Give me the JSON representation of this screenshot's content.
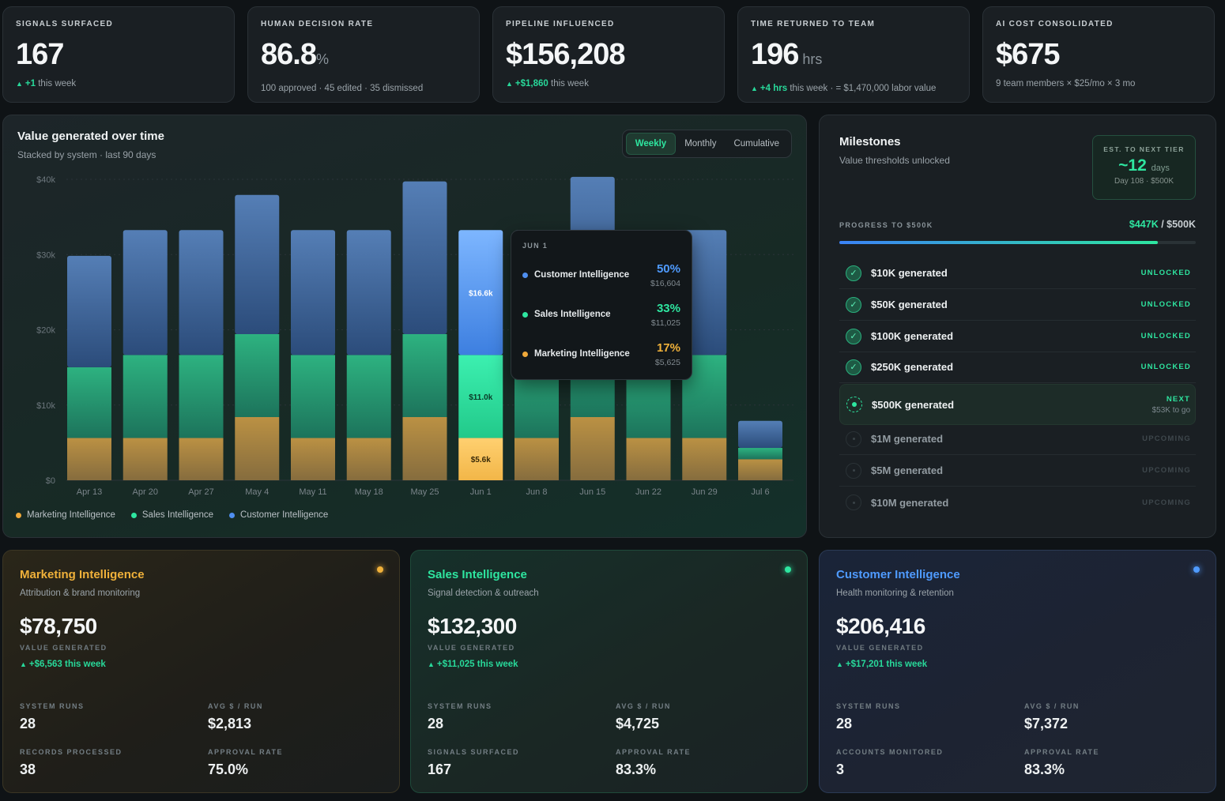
{
  "kpis": [
    {
      "label": "SIGNALS SURFACED",
      "value": "167",
      "unit": "",
      "sub_up": "+1",
      "sub_text": " this week"
    },
    {
      "label": "HUMAN DECISION RATE",
      "value": "86.8",
      "unit": "%",
      "sub_up": "",
      "sub_text": "100 approved · 45 edited · 35 dismissed"
    },
    {
      "label": "PIPELINE INFLUENCED",
      "value": "$156,208",
      "unit": "",
      "sub_up": "+$1,860",
      "sub_text": " this week"
    },
    {
      "label": "TIME RETURNED TO TEAM",
      "value": "196",
      "unit": " hrs",
      "sub_up": "+4 hrs",
      "sub_text": " this week · = $1,470,000 labor value"
    },
    {
      "label": "AI COST CONSOLIDATED",
      "value": "$675",
      "unit": "",
      "sub_up": "",
      "sub_text": "9 team members × $25/mo × 3 mo"
    }
  ],
  "chart_panel": {
    "title": "Value generated over time",
    "subtitle": "Stacked by system · last 90 days",
    "toggle": [
      "Weekly",
      "Monthly",
      "Cumulative"
    ],
    "active_toggle": "Weekly"
  },
  "chart_data": {
    "type": "bar",
    "stacked": true,
    "categories": [
      "Apr 13",
      "Apr 20",
      "Apr 27",
      "May 4",
      "May 11",
      "May 18",
      "May 25",
      "Jun 1",
      "Jun 8",
      "Jun 15",
      "Jun 22",
      "Jun 29",
      "Jul 6"
    ],
    "series": [
      {
        "name": "Marketing Intelligence",
        "color": "#d9a94a",
        "values": [
          5625,
          5625,
          5625,
          8400,
          5625,
          5625,
          8400,
          5625,
          5625,
          8400,
          5625,
          5625,
          2800
        ]
      },
      {
        "name": "Sales Intelligence",
        "color": "#2fc98f",
        "values": [
          9400,
          11025,
          11025,
          11025,
          11025,
          11025,
          11025,
          11025,
          11025,
          11025,
          11025,
          11025,
          1500
        ]
      },
      {
        "name": "Customer Intelligence",
        "color": "#4a7fc9",
        "values": [
          14800,
          16604,
          16604,
          18500,
          16604,
          16604,
          20300,
          16604,
          16604,
          20900,
          16604,
          16604,
          3600
        ]
      }
    ],
    "highlight_index": 7,
    "highlight_labels": [
      "$5.6k",
      "$11.0k",
      "$16.6k"
    ],
    "yticks": [
      "$0",
      "$10k",
      "$20k",
      "$30k",
      "$40k"
    ],
    "ylim": [
      0,
      40000
    ],
    "xlabel": "",
    "ylabel": "",
    "legend": "bottom-left"
  },
  "legend": [
    {
      "name": "Marketing Intelligence",
      "color": "#f0a93a"
    },
    {
      "name": "Sales Intelligence",
      "color": "#2ee6a0"
    },
    {
      "name": "Customer Intelligence",
      "color": "#4f8ff0"
    }
  ],
  "tooltip": {
    "header": "JUN 1",
    "rows": [
      {
        "name": "Customer Intelligence",
        "pct": "50%",
        "amount": "$16,604",
        "color": "#4f8ff0"
      },
      {
        "name": "Sales Intelligence",
        "pct": "33%",
        "amount": "$11,025",
        "color": "#2ee6a0"
      },
      {
        "name": "Marketing Intelligence",
        "pct": "17%",
        "amount": "$5,625",
        "color": "#f0a93a"
      }
    ]
  },
  "milestones": {
    "title": "Milestones",
    "subtitle": "Value thresholds unlocked",
    "tier_label": "EST. TO NEXT TIER",
    "tier_value": "~12",
    "tier_unit": "days",
    "tier_sub": "Day 108 · $500K",
    "progress_label": "PROGRESS TO $500K",
    "progress_current": "$447K",
    "progress_target": " / $500K",
    "progress_fraction": 0.894,
    "items": [
      {
        "name": "$10K generated",
        "status": "UNLOCKED",
        "state": "done"
      },
      {
        "name": "$50K generated",
        "status": "UNLOCKED",
        "state": "done"
      },
      {
        "name": "$100K generated",
        "status": "UNLOCKED",
        "state": "done"
      },
      {
        "name": "$250K generated",
        "status": "UNLOCKED",
        "state": "done"
      },
      {
        "name": "$500K generated",
        "status": "NEXT",
        "sub": "$53K to go",
        "state": "next"
      },
      {
        "name": "$1M generated",
        "status": "UPCOMING",
        "state": "up"
      },
      {
        "name": "$5M generated",
        "status": "UPCOMING",
        "state": "up"
      },
      {
        "name": "$10M generated",
        "status": "UPCOMING",
        "state": "up"
      }
    ]
  },
  "systems": [
    {
      "title": "Marketing Intelligence",
      "color": "#f0b13a",
      "subtitle": "Attribution & brand monitoring",
      "value": "$78,750",
      "value_label": "VALUE GENERATED",
      "change": "+$6,563 this week",
      "stats": [
        {
          "label": "SYSTEM RUNS",
          "value": "28"
        },
        {
          "label": "AVG $ / RUN",
          "value": "$2,813"
        },
        {
          "label": "RECORDS PROCESSED",
          "value": "38"
        },
        {
          "label": "APPROVAL RATE",
          "value": "75.0%"
        }
      ]
    },
    {
      "title": "Sales Intelligence",
      "color": "#2ee6a0",
      "subtitle": "Signal detection & outreach",
      "value": "$132,300",
      "value_label": "VALUE GENERATED",
      "change": "+$11,025 this week",
      "stats": [
        {
          "label": "SYSTEM RUNS",
          "value": "28"
        },
        {
          "label": "AVG $ / RUN",
          "value": "$4,725"
        },
        {
          "label": "SIGNALS SURFACED",
          "value": "167"
        },
        {
          "label": "APPROVAL RATE",
          "value": "83.3%"
        }
      ]
    },
    {
      "title": "Customer Intelligence",
      "color": "#4f9bff",
      "subtitle": "Health monitoring & retention",
      "value": "$206,416",
      "value_label": "VALUE GENERATED",
      "change": "+$17,201 this week",
      "stats": [
        {
          "label": "SYSTEM RUNS",
          "value": "28"
        },
        {
          "label": "AVG $ / RUN",
          "value": "$7,372"
        },
        {
          "label": "ACCOUNTS MONITORED",
          "value": "3"
        },
        {
          "label": "APPROVAL RATE",
          "value": "83.3%"
        }
      ]
    }
  ]
}
